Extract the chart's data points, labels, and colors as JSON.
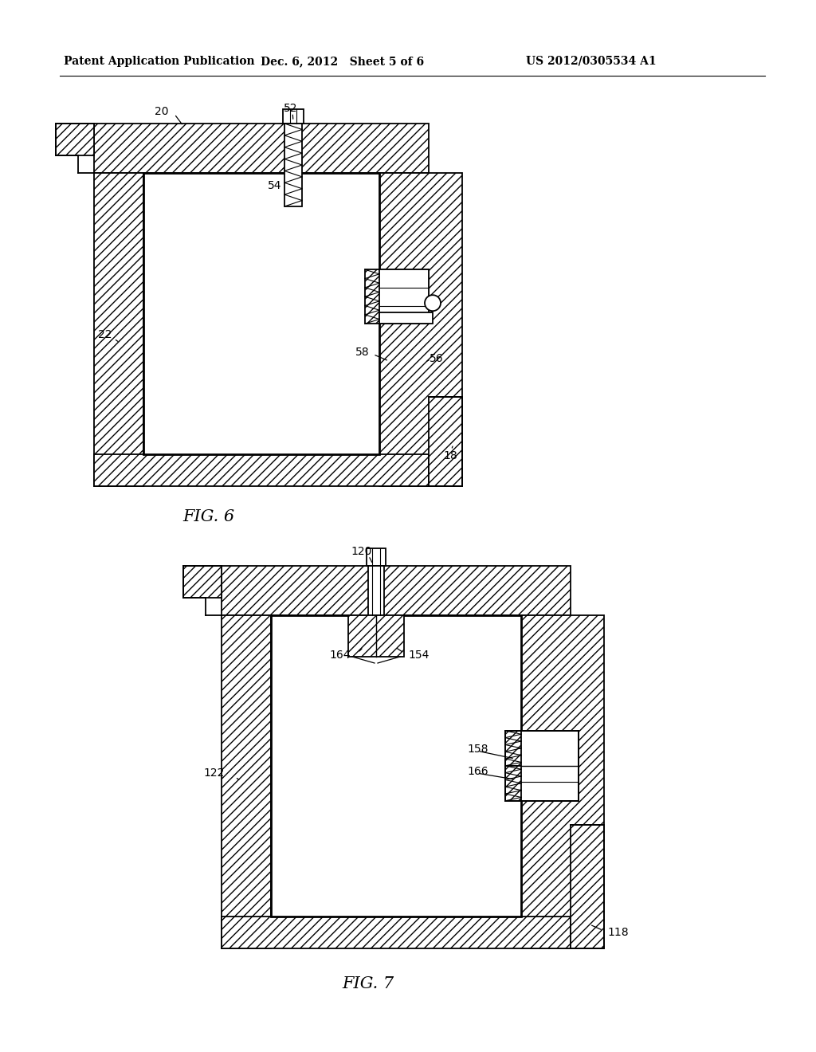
{
  "bg_color": "#ffffff",
  "lc": "#000000",
  "header_left": "Patent Application Publication",
  "header_mid": "Dec. 6, 2012   Sheet 5 of 6",
  "header_right": "US 2012/0305534 A1",
  "fig6_title": "FIG. 6",
  "fig7_title": "FIG. 7",
  "lw": 1.3,
  "lw2": 2.0
}
